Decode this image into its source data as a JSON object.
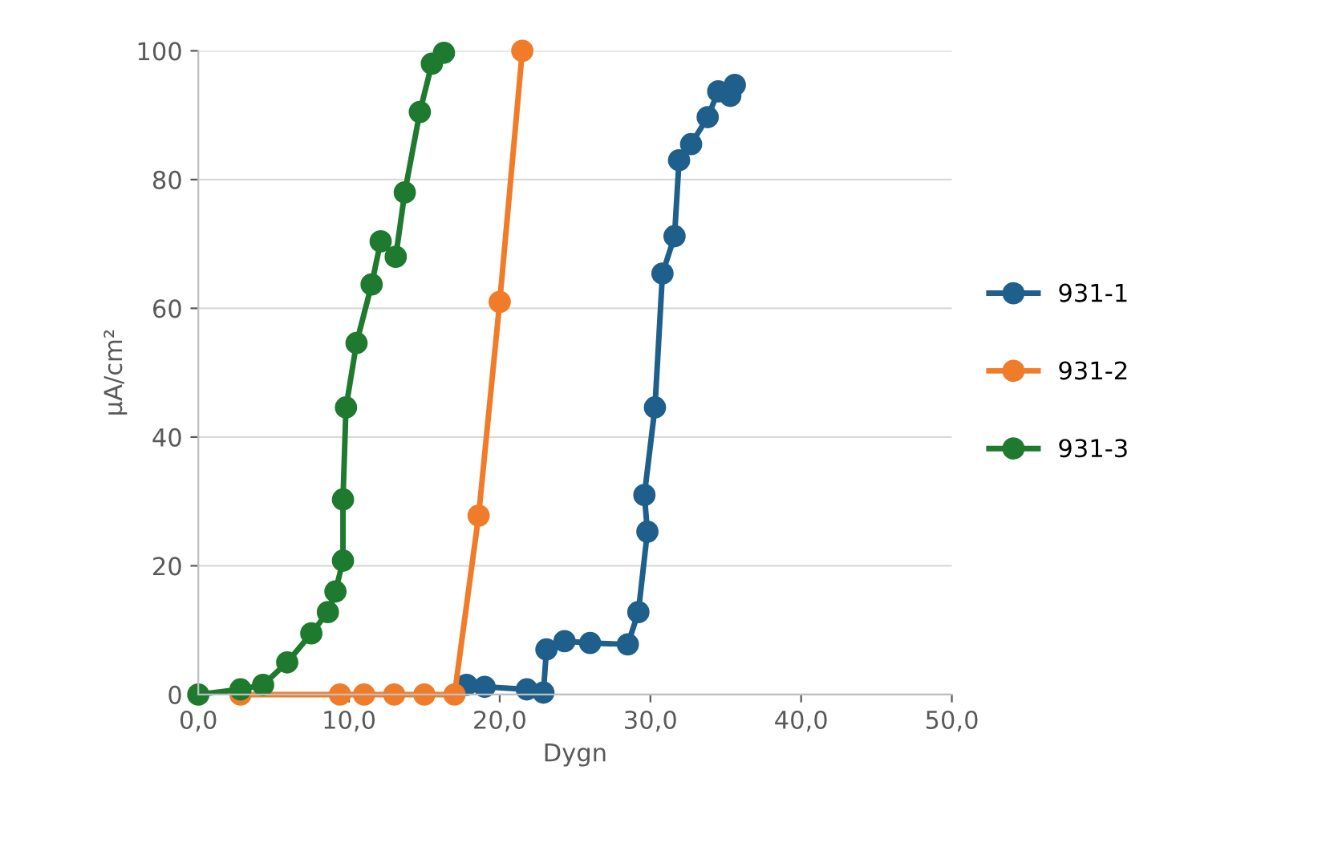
{
  "chart_data": {
    "type": "line",
    "xlabel": "Dygn",
    "ylabel": "µA/cm²",
    "xlim": [
      0,
      50
    ],
    "ylim": [
      0,
      100
    ],
    "xticks": [
      {
        "value": 0,
        "label": "0,0"
      },
      {
        "value": 10,
        "label": "10,0"
      },
      {
        "value": 20,
        "label": "20,0"
      },
      {
        "value": 30,
        "label": "30,0"
      },
      {
        "value": 40,
        "label": "40,0"
      },
      {
        "value": 50,
        "label": "50,0"
      }
    ],
    "yticks": [
      0,
      20,
      40,
      60,
      80,
      100
    ],
    "grid": "y",
    "legend": "right",
    "marker": "circle",
    "line_style": "solid",
    "series": [
      {
        "name": "931-1",
        "color": "#1f5f8b",
        "x": [
          17.8,
          19,
          21.8,
          22.9,
          23.1,
          24.3,
          26,
          28.5,
          29.2,
          29.8,
          29.6,
          30.3,
          30.8,
          31.6,
          31.9,
          32.7,
          33.8,
          34.5,
          35.6,
          35.3
        ],
        "values": [
          1.5,
          1.2,
          0.8,
          0.3,
          7,
          8.3,
          8,
          7.8,
          12.8,
          25.3,
          31,
          44.6,
          65.4,
          71.2,
          83,
          85.5,
          89.7,
          93.7,
          94.7,
          93
        ]
      },
      {
        "name": "931-2",
        "color": "#f07c2a",
        "x": [
          2.8,
          9.4,
          11,
          13,
          15,
          17,
          18.6,
          20,
          21.5
        ],
        "values": [
          0,
          0,
          0,
          0,
          0,
          0,
          27.8,
          61,
          100
        ]
      },
      {
        "name": "931-3",
        "color": "#1e7a2e",
        "x": [
          0,
          2.8,
          4.3,
          5.9,
          7.5,
          8.6,
          9.1,
          9.6,
          9.6,
          9.8,
          10.5,
          11.5,
          12.1,
          13.1,
          13.7,
          14.7,
          15.5,
          16.3
        ],
        "values": [
          0,
          0.8,
          1.5,
          5,
          9.5,
          12.8,
          16,
          20.8,
          30.3,
          44.6,
          54.6,
          63.7,
          70.4,
          68,
          78,
          90.5,
          98,
          99.7
        ]
      }
    ]
  }
}
